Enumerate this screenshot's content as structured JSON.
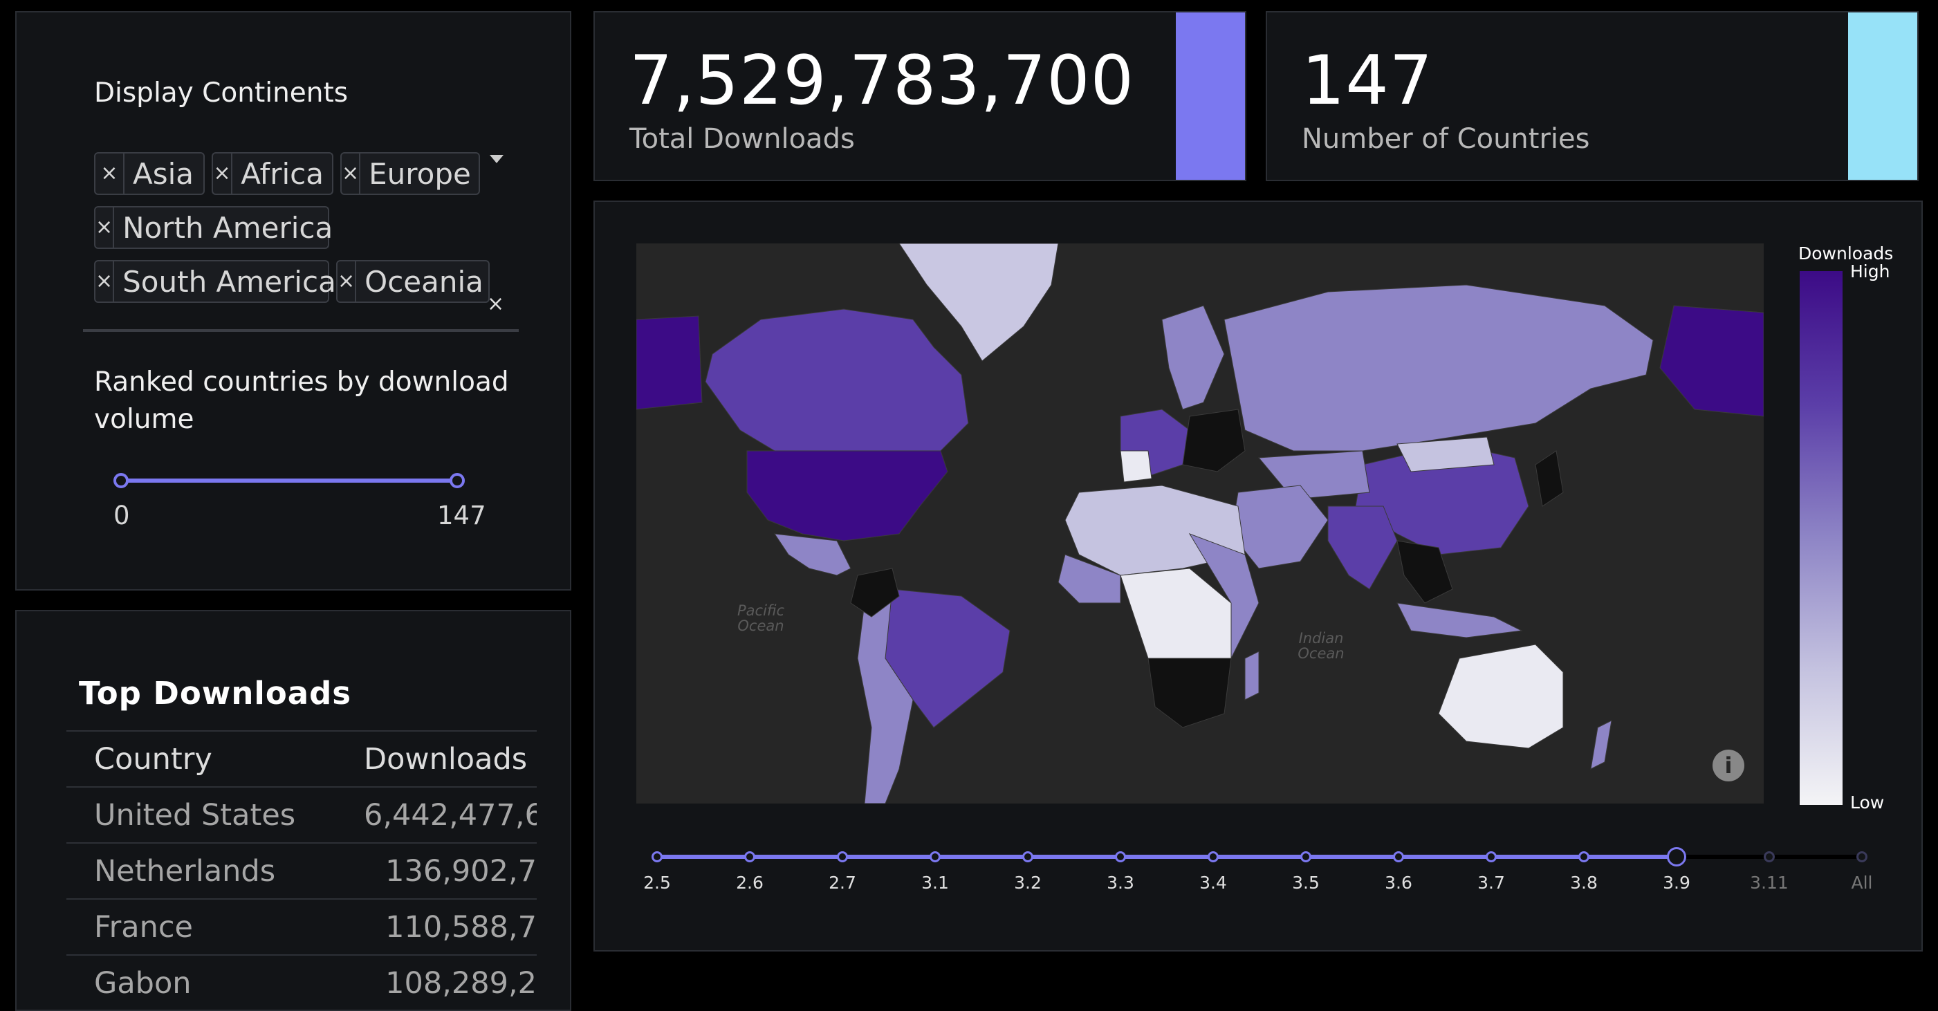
{
  "filters": {
    "continents_label": "Display Continents",
    "selected_continents": [
      "Asia",
      "Africa",
      "Europe",
      "North America",
      "South America",
      "Oceania"
    ],
    "chip_remove_glyph": "×",
    "rank_label": "Ranked countries by download volume",
    "rank_min": "0",
    "rank_max": "147"
  },
  "kpis": [
    {
      "value": "7,529,783,700",
      "caption": "Total Downloads",
      "accent": "#7b78f0"
    },
    {
      "value": "147",
      "caption": "Number of Countries",
      "accent": "#97e2f8"
    }
  ],
  "table": {
    "title": "Top Downloads",
    "columns": [
      "Country",
      "Downloads"
    ],
    "rows": [
      [
        "United States",
        "6,442,477,6"
      ],
      [
        "Netherlands",
        "136,902,7"
      ],
      [
        "France",
        "110,588,7"
      ],
      [
        "Gabon",
        "108,289,2"
      ]
    ]
  },
  "map": {
    "ocean_labels": [
      "Pacific Ocean",
      "Indian Ocean"
    ],
    "colorbar_title": "Downloads",
    "colorbar_high": "High",
    "colorbar_low": "Low",
    "info_glyph": "i"
  },
  "version_slider": {
    "steps": [
      "2.5",
      "2.6",
      "2.7",
      "3.1",
      "3.2",
      "3.3",
      "3.4",
      "3.5",
      "3.6",
      "3.7",
      "3.8",
      "3.9",
      "3.11",
      "All"
    ],
    "selected": "3.9"
  },
  "colors": {
    "accent": "#7b78f0",
    "map_high": "#3c0b86",
    "map_low": "#f4f4f6"
  }
}
